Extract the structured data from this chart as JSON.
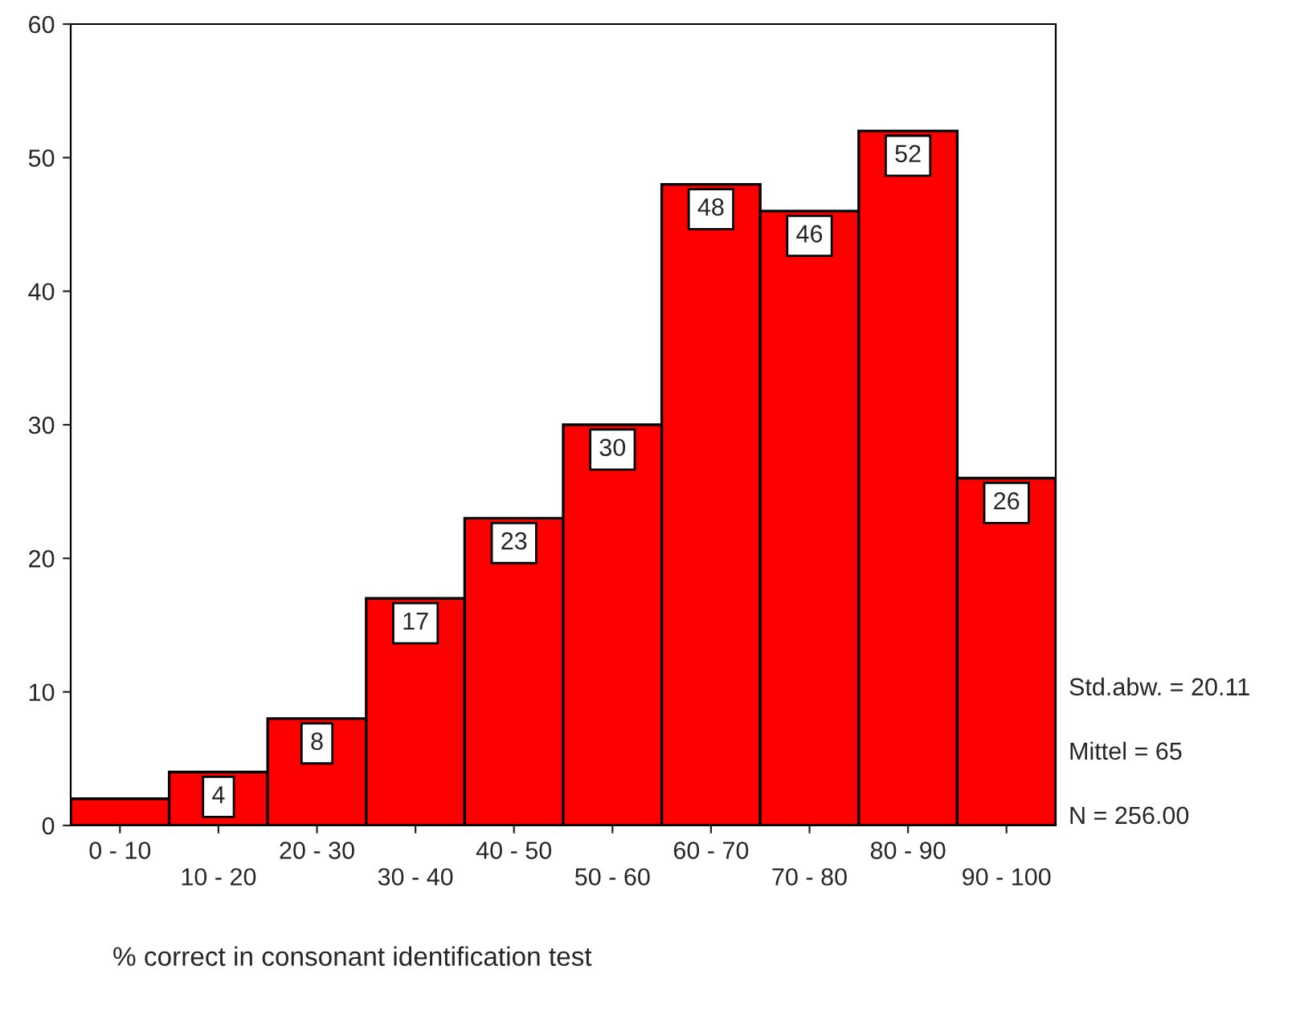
{
  "chart_data": {
    "type": "bar",
    "categories": [
      "0 - 10",
      "10 - 20",
      "20 - 30",
      "30 - 40",
      "40 - 50",
      "50 - 60",
      "60 - 70",
      "70 - 80",
      "80 - 90",
      "90 - 100"
    ],
    "values": [
      2,
      4,
      8,
      17,
      23,
      30,
      48,
      46,
      52,
      26
    ],
    "value_labels": [
      null,
      "4",
      "8",
      "17",
      "23",
      "30",
      "48",
      "46",
      "52",
      "26"
    ],
    "color": "#ff0000",
    "xlabel": "% correct in consonant identification test",
    "ylim": [
      0,
      60
    ],
    "yticks": [
      0,
      10,
      20,
      30,
      40,
      50,
      60
    ],
    "annotations": [
      "Std.abw. = 20.11",
      "Mittel = 65",
      "N = 256.00"
    ],
    "grid": false,
    "legend": false
  }
}
